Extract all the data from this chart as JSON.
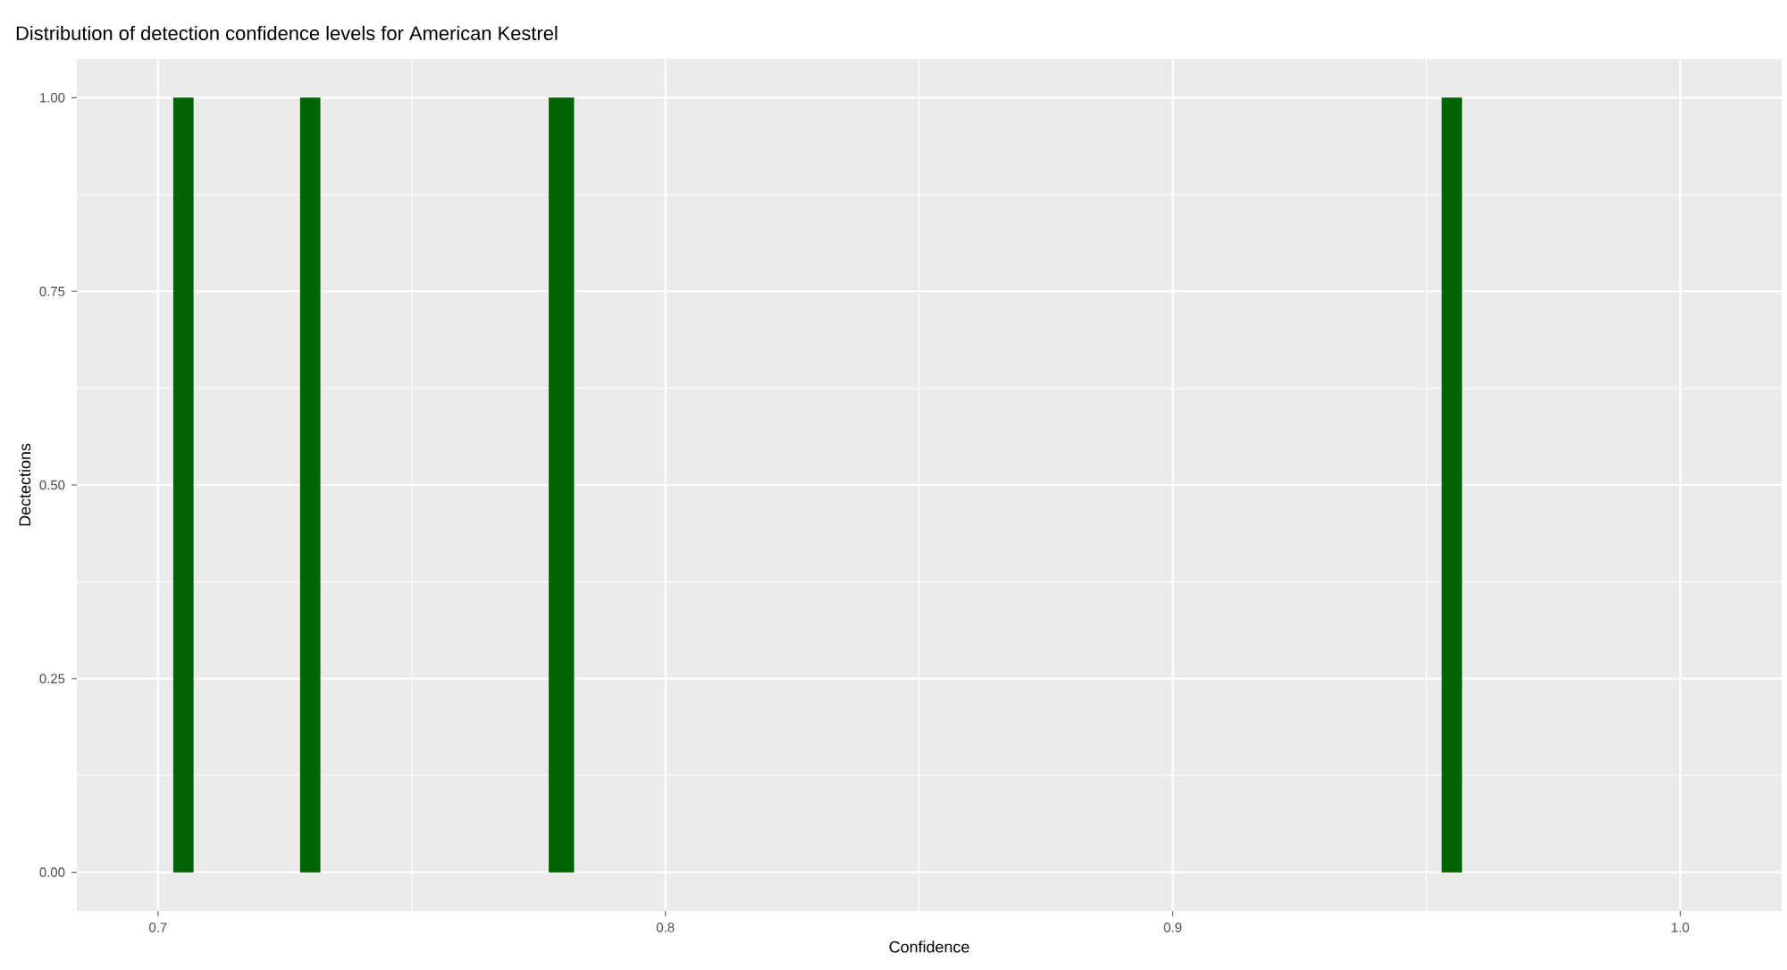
{
  "chart_data": {
    "type": "histogram",
    "title": "Distribution of detection confidence levels for American Kestrel",
    "xlabel": "Confidence",
    "ylabel": "Dectections",
    "bins": [
      0.703,
      0.707,
      0.728,
      0.732,
      0.777,
      0.782,
      0.953,
      0.957
    ],
    "values": [
      1,
      0,
      1,
      0,
      1,
      0,
      1
    ],
    "color": "#006400",
    "xlim": [
      0.684,
      1.02
    ],
    "ylim": [
      -0.05,
      1.05
    ],
    "xticks": [
      0.7,
      0.8,
      0.9,
      {
        "value": 1.0,
        "label": "1.0"
      }
    ],
    "yticks": [
      {
        "value": 0,
        "label": "0.00"
      },
      {
        "value": 0.25,
        "label": "0.25"
      },
      {
        "value": 0.5,
        "label": "0.50"
      },
      {
        "value": 0.75,
        "label": "0.75"
      },
      {
        "value": 1,
        "label": "1.00"
      }
    ],
    "grid": true
  }
}
